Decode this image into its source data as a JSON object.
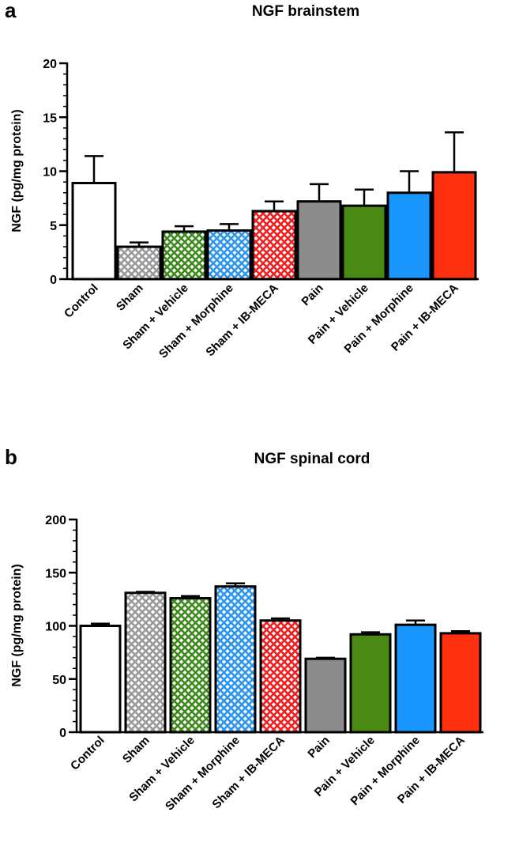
{
  "chart_data": [
    {
      "panel": "a",
      "type": "bar",
      "title": "NGF brainstem",
      "ylabel": "NGF (pg/mg protein)",
      "xlabel": "",
      "ylim": [
        0,
        20
      ],
      "yticks": [
        0,
        5,
        10,
        15,
        20
      ],
      "minor_step": 1,
      "categories": [
        "Control",
        "Sham",
        "Sham + Vehicle",
        "Sham + Morphine",
        "Sham + IB-MECA",
        "Pain",
        "Pain + Vehicle",
        "Pain + Morphine",
        "Pain + IB-MECA"
      ],
      "values": [
        8.9,
        3.0,
        4.4,
        4.5,
        6.3,
        7.2,
        6.8,
        8.0,
        9.9
      ],
      "errors": [
        2.5,
        0.4,
        0.5,
        0.6,
        0.9,
        1.6,
        1.5,
        2.0,
        3.7
      ]
    },
    {
      "panel": "b",
      "type": "bar",
      "title": "NGF spinal cord",
      "ylabel": "NGF (pg/mg protein)",
      "xlabel": "",
      "ylim": [
        0,
        200
      ],
      "yticks": [
        0,
        50,
        100,
        150,
        200
      ],
      "minor_step": 10,
      "categories": [
        "Control",
        "Sham",
        "Sham + Vehicle",
        "Sham + Morphine",
        "Sham + IB-MECA",
        "Pain",
        "Pain + Vehicle",
        "Pain + Morphine",
        "Pain + IB-MECA"
      ],
      "values": [
        100,
        131,
        126,
        137,
        105,
        69,
        92,
        101,
        93
      ],
      "errors": [
        2,
        1,
        2,
        3,
        2,
        1,
        2,
        4,
        2
      ]
    }
  ],
  "series_styles": [
    {
      "fill": "#ffffff",
      "pattern": "none"
    },
    {
      "fill": "#9a9a9a",
      "pattern": "cross"
    },
    {
      "fill": "#3f8a1e",
      "pattern": "cross"
    },
    {
      "fill": "#2f96f0",
      "pattern": "cross"
    },
    {
      "fill": "#ee2222",
      "pattern": "cross"
    },
    {
      "fill": "#8c8c8c",
      "pattern": "none"
    },
    {
      "fill": "#4a8a14",
      "pattern": "none"
    },
    {
      "fill": "#1a96ff",
      "pattern": "none"
    },
    {
      "fill": "#ff3010",
      "pattern": "none"
    }
  ]
}
